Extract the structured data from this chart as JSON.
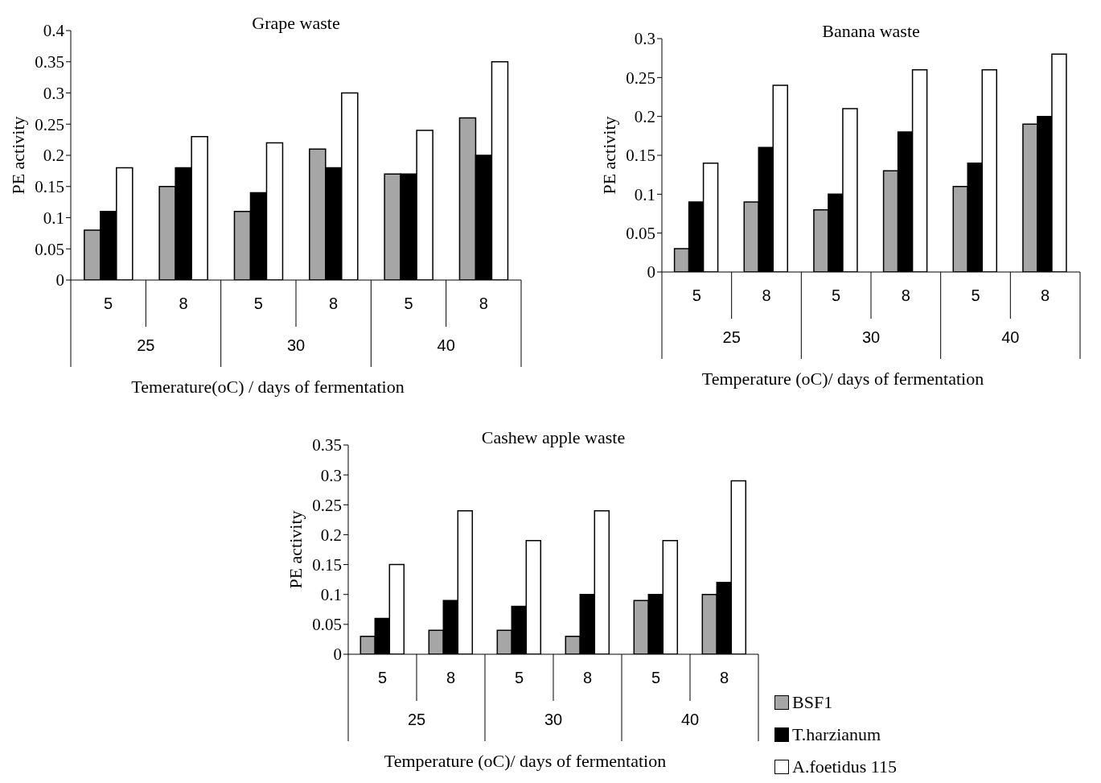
{
  "chart_data": [
    {
      "type": "bar",
      "title": "Grape waste",
      "xlabel": "Temerature(oC) / days of fermentation",
      "ylabel": "PE activity",
      "categories": [
        "5",
        "8",
        "5",
        "8",
        "5",
        "8"
      ],
      "annotations": [
        "25",
        "30",
        "40"
      ],
      "ylim": [
        0,
        0.4
      ],
      "yticks": [
        0,
        0.05,
        0.1,
        0.15,
        0.2,
        0.25,
        0.3,
        0.35,
        0.4
      ],
      "grid": false,
      "legend": false,
      "series": [
        {
          "color": "#a6a6a6",
          "values": [
            0.08,
            0.15,
            0.11,
            0.21,
            0.17,
            0.26
          ]
        },
        {
          "color": "#000000",
          "values": [
            0.11,
            0.18,
            0.14,
            0.18,
            0.17,
            0.2
          ]
        },
        {
          "color": "#ffffff",
          "values": [
            0.18,
            0.23,
            0.22,
            0.3,
            0.24,
            0.35
          ]
        }
      ]
    },
    {
      "type": "bar",
      "title": "Banana waste",
      "xlabel": "Temperature (oC)/ days of fermentation",
      "ylabel": "PE activity",
      "categories": [
        "5",
        "8",
        "5",
        "8",
        "5",
        "8"
      ],
      "annotations": [
        "25",
        "30",
        "40"
      ],
      "ylim": [
        0,
        0.3
      ],
      "yticks": [
        0,
        0.05,
        0.1,
        0.15,
        0.2,
        0.25,
        0.3
      ],
      "grid": false,
      "legend": false,
      "series": [
        {
          "color": "#a6a6a6",
          "values": [
            0.03,
            0.09,
            0.08,
            0.13,
            0.11,
            0.19
          ]
        },
        {
          "color": "#000000",
          "values": [
            0.09,
            0.16,
            0.1,
            0.18,
            0.14,
            0.2
          ]
        },
        {
          "color": "#ffffff",
          "values": [
            0.14,
            0.24,
            0.21,
            0.26,
            0.26,
            0.28
          ]
        }
      ]
    },
    {
      "type": "bar",
      "title": "Cashew apple waste",
      "xlabel": "Temperature (oC)/ days of fermentation",
      "ylabel": "PE activity",
      "categories": [
        "5",
        "8",
        "5",
        "8",
        "5",
        "8"
      ],
      "annotations": [
        "25",
        "30",
        "40"
      ],
      "ylim": [
        0,
        0.35
      ],
      "yticks": [
        0,
        0.05,
        0.1,
        0.15,
        0.2,
        0.25,
        0.3,
        0.35
      ],
      "grid": false,
      "legend": "bottom right",
      "series": [
        {
          "name": "BSF1",
          "color": "#a6a6a6",
          "values": [
            0.03,
            0.04,
            0.04,
            0.03,
            0.09,
            0.1
          ]
        },
        {
          "name": "T.harzianum",
          "color": "#000000",
          "values": [
            0.06,
            0.09,
            0.08,
            0.1,
            0.1,
            0.12
          ]
        },
        {
          "name": "A.foetidus 115",
          "color": "#ffffff",
          "values": [
            0.15,
            0.24,
            0.19,
            0.24,
            0.19,
            0.29
          ]
        }
      ]
    }
  ]
}
